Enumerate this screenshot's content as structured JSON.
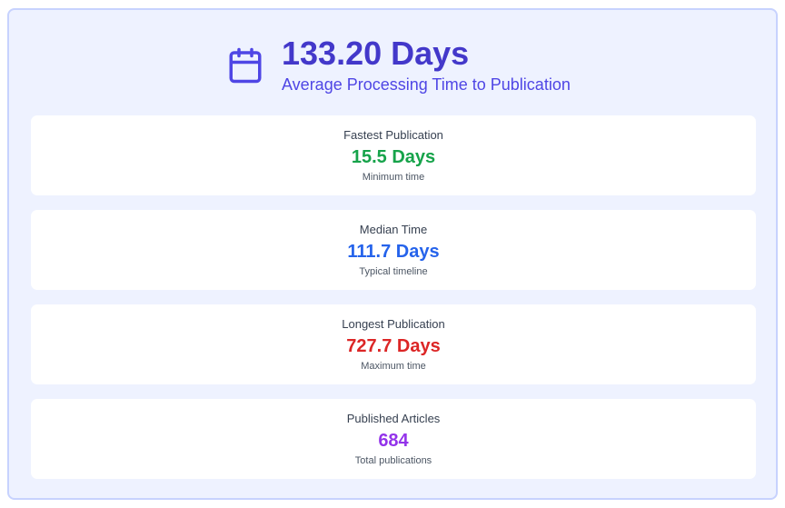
{
  "summary": {
    "value": "133.20 Days",
    "label": "Average Processing Time to Publication",
    "icon": "calendar-icon",
    "accent": "#4338ca"
  },
  "stats": [
    {
      "title": "Fastest Publication",
      "value": "15.5 Days",
      "subtitle": "Minimum time",
      "color": "#16a34a"
    },
    {
      "title": "Median Time",
      "value": "111.7 Days",
      "subtitle": "Typical timeline",
      "color": "#2563eb"
    },
    {
      "title": "Longest Publication",
      "value": "727.7 Days",
      "subtitle": "Maximum time",
      "color": "#dc2626"
    },
    {
      "title": "Published Articles",
      "value": "684",
      "subtitle": "Total publications",
      "color": "#9333ea"
    }
  ]
}
